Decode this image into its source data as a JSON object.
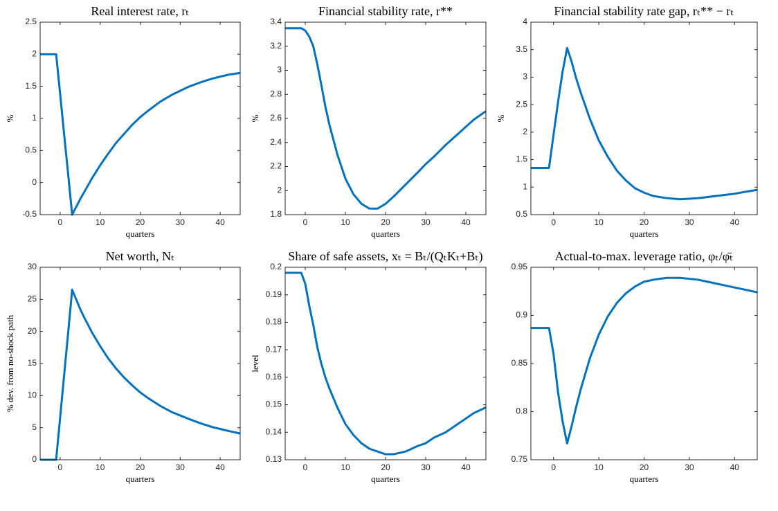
{
  "chart_data": [
    {
      "type": "line",
      "title": "Real interest rate, rₜ",
      "x_label": "quarters",
      "y_label": "%",
      "x": [
        -5,
        -4,
        -3,
        -2,
        -1,
        0,
        1,
        2,
        3,
        4,
        5,
        6,
        8,
        10,
        12,
        14,
        16,
        18,
        20,
        22,
        25,
        28,
        30,
        32,
        35,
        38,
        40,
        42,
        45
      ],
      "series": [
        {
          "color": "#0072bd",
          "values": [
            2,
            2,
            2,
            2,
            2,
            1.38,
            0.75,
            0.13,
            -0.5,
            -0.38,
            -0.26,
            -0.15,
            0.07,
            0.27,
            0.45,
            0.62,
            0.76,
            0.9,
            1.02,
            1.12,
            1.26,
            1.37,
            1.43,
            1.49,
            1.56,
            1.62,
            1.65,
            1.68,
            1.71
          ]
        }
      ],
      "xlim": [
        -5,
        45
      ],
      "xticks": [
        0,
        10,
        20,
        30,
        40
      ],
      "ylim": [
        -0.5,
        2.5
      ],
      "yticks": [
        -0.5,
        0,
        0.5,
        1,
        1.5,
        2,
        2.5
      ]
    },
    {
      "type": "line",
      "title": "Financial stability rate, r**",
      "x_label": "quarters",
      "y_label": "%",
      "x": [
        -5,
        -4,
        -3,
        -2,
        -1,
        0,
        1,
        2,
        3,
        4,
        5,
        6,
        8,
        10,
        12,
        14,
        16,
        18,
        20,
        22,
        25,
        28,
        30,
        32,
        35,
        38,
        40,
        42,
        45
      ],
      "series": [
        {
          "color": "#0072bd",
          "values": [
            3.35,
            3.35,
            3.35,
            3.35,
            3.35,
            3.33,
            3.28,
            3.2,
            3.05,
            2.88,
            2.7,
            2.55,
            2.3,
            2.1,
            1.97,
            1.89,
            1.85,
            1.85,
            1.89,
            1.95,
            2.05,
            2.15,
            2.22,
            2.28,
            2.38,
            2.47,
            2.53,
            2.59,
            2.66
          ]
        }
      ],
      "xlim": [
        -5,
        45
      ],
      "xticks": [
        0,
        10,
        20,
        30,
        40
      ],
      "ylim": [
        1.8,
        3.4
      ],
      "yticks": [
        1.8,
        2,
        2.2,
        2.4,
        2.6,
        2.8,
        3,
        3.2,
        3.4
      ]
    },
    {
      "type": "line",
      "title": "Financial stability rate gap, rₜ** − rₜ",
      "x_label": "quarters",
      "y_label": "%",
      "x": [
        -5,
        -4,
        -3,
        -2,
        -1,
        0,
        1,
        2,
        3,
        4,
        5,
        6,
        8,
        10,
        12,
        14,
        16,
        18,
        20,
        22,
        25,
        28,
        30,
        32,
        35,
        38,
        40,
        42,
        45
      ],
      "series": [
        {
          "color": "#0072bd",
          "values": [
            1.35,
            1.35,
            1.35,
            1.35,
            1.35,
            1.95,
            2.55,
            3.1,
            3.53,
            3.28,
            2.98,
            2.72,
            2.25,
            1.85,
            1.55,
            1.3,
            1.12,
            0.98,
            0.9,
            0.84,
            0.8,
            0.78,
            0.79,
            0.8,
            0.83,
            0.86,
            0.88,
            0.91,
            0.95
          ]
        }
      ],
      "xlim": [
        -5,
        45
      ],
      "xticks": [
        0,
        10,
        20,
        30,
        40
      ],
      "ylim": [
        0.5,
        4
      ],
      "yticks": [
        0.5,
        1,
        1.5,
        2,
        2.5,
        3,
        3.5,
        4
      ]
    },
    {
      "type": "line",
      "title": "Net worth, Nₜ",
      "x_label": "quarters",
      "y_label": "% dev. from no-shock path",
      "x": [
        -5,
        -4,
        -3,
        -2,
        -1,
        0,
        1,
        2,
        3,
        4,
        5,
        6,
        8,
        10,
        12,
        14,
        16,
        18,
        20,
        22,
        25,
        28,
        30,
        32,
        35,
        38,
        40,
        42,
        45
      ],
      "series": [
        {
          "color": "#0072bd",
          "values": [
            0,
            0,
            0,
            0,
            0,
            6.6,
            13.2,
            19.8,
            26.5,
            25,
            23.5,
            22.2,
            19.8,
            17.7,
            15.8,
            14.2,
            12.8,
            11.6,
            10.5,
            9.6,
            8.4,
            7.4,
            6.9,
            6.4,
            5.7,
            5.1,
            4.8,
            4.5,
            4.1
          ]
        }
      ],
      "xlim": [
        -5,
        45
      ],
      "xticks": [
        0,
        10,
        20,
        30,
        40
      ],
      "ylim": [
        0,
        30
      ],
      "yticks": [
        0,
        5,
        10,
        15,
        20,
        25,
        30
      ]
    },
    {
      "type": "line",
      "title": "Share of safe assets, xₜ = Bₜ/(QₜKₜ+Bₜ)",
      "x_label": "quarters",
      "y_label": "level",
      "x": [
        -5,
        -4,
        -3,
        -2,
        -1,
        0,
        1,
        2,
        3,
        4,
        5,
        6,
        8,
        10,
        12,
        14,
        16,
        18,
        20,
        22,
        25,
        28,
        30,
        32,
        35,
        38,
        40,
        42,
        45
      ],
      "series": [
        {
          "color": "#0072bd",
          "values": [
            0.198,
            0.198,
            0.198,
            0.198,
            0.198,
            0.194,
            0.186,
            0.179,
            0.171,
            0.165,
            0.16,
            0.156,
            0.149,
            0.143,
            0.139,
            0.136,
            0.134,
            0.133,
            0.132,
            0.132,
            0.133,
            0.135,
            0.136,
            0.138,
            0.14,
            0.143,
            0.145,
            0.147,
            0.149
          ]
        }
      ],
      "xlim": [
        -5,
        45
      ],
      "xticks": [
        0,
        10,
        20,
        30,
        40
      ],
      "ylim": [
        0.13,
        0.2
      ],
      "yticks": [
        0.13,
        0.14,
        0.15,
        0.16,
        0.17,
        0.18,
        0.19,
        0.2
      ]
    },
    {
      "type": "line",
      "title": "Actual-to-max. leverage ratio, φₜ/φ̄ₜ",
      "x_label": "quarters",
      "x": [
        -5,
        -4,
        -3,
        -2,
        -1,
        0,
        1,
        2,
        3,
        4,
        5,
        6,
        8,
        10,
        12,
        14,
        16,
        18,
        20,
        22,
        25,
        28,
        30,
        32,
        35,
        38,
        40,
        42,
        45
      ],
      "series": [
        {
          "color": "#0072bd",
          "values": [
            0.887,
            0.887,
            0.887,
            0.887,
            0.887,
            0.86,
            0.82,
            0.79,
            0.767,
            0.785,
            0.805,
            0.823,
            0.855,
            0.88,
            0.899,
            0.913,
            0.923,
            0.93,
            0.935,
            0.937,
            0.939,
            0.939,
            0.938,
            0.937,
            0.934,
            0.931,
            0.929,
            0.927,
            0.924
          ]
        }
      ],
      "xlim": [
        -5,
        45
      ],
      "xticks": [
        0,
        10,
        20,
        30,
        40
      ],
      "ylim": [
        0.75,
        0.95
      ],
      "yticks": [
        0.75,
        0.8,
        0.85,
        0.9,
        0.95
      ]
    }
  ]
}
